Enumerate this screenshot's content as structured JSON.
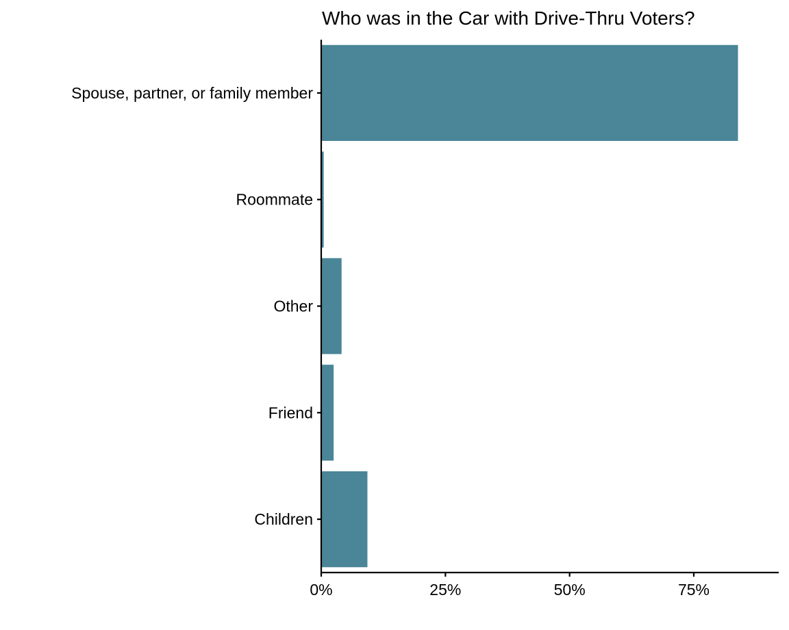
{
  "chart_data": {
    "type": "bar",
    "orientation": "horizontal",
    "title": "Who was in the Car with Drive-Thru Voters?",
    "xlabel": "",
    "ylabel": "",
    "categories": [
      "Spouse, partner, or family member",
      "Roommate",
      "Other",
      "Friend",
      "Children"
    ],
    "values": [
      83.9,
      0.5,
      4.1,
      2.5,
      9.3
    ],
    "xlim": [
      0,
      92.1
    ],
    "xticks": [
      0,
      25,
      50,
      75
    ],
    "xtick_labels": [
      "0%",
      "25%",
      "50%",
      "75%"
    ],
    "grid": false,
    "legend": "none",
    "bar_color": "#4a8598"
  }
}
